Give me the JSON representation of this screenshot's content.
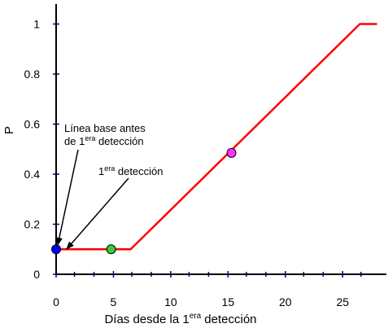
{
  "chart_data": {
    "type": "line",
    "xlabel": {
      "main": "Días desde la 1",
      "sup": "era",
      "tail": " detección"
    },
    "ylabel": "P",
    "xlim": [
      0,
      28
    ],
    "ylim": [
      0,
      1.05
    ],
    "x_ticks": [
      0,
      5,
      10,
      15,
      20,
      25
    ],
    "x_tick_labels": [
      "0",
      "5",
      "10",
      "15",
      "20",
      "25"
    ],
    "x_minor_ticks": [
      1.6,
      3.3,
      6.6,
      8.3,
      11.6,
      13.3,
      16.6,
      18.3,
      21.6,
      23.3,
      26.6
    ],
    "y_ticks": [
      0,
      0.2,
      0.4,
      0.6,
      0.8,
      1
    ],
    "y_tick_labels": [
      "0",
      "0.2",
      "0.4",
      "0.6",
      "0.8",
      "1"
    ],
    "grid": false,
    "series": [
      {
        "color": "#ff0000",
        "x": [
          0,
          6.5,
          26.5,
          28
        ],
        "y": [
          0.1,
          0.1,
          1.0,
          1.0
        ]
      }
    ],
    "markers": [
      {
        "x": 0,
        "y": 0.1,
        "color": "#0000ff"
      },
      {
        "x": 4.8,
        "y": 0.1,
        "color": "#33cc33"
      },
      {
        "x": 15.3,
        "y": 0.485,
        "color": "#ff33ff"
      }
    ],
    "annotations": [
      {
        "line1": "Línea base antes",
        "line2_main": "de 1",
        "line2_sup": "era",
        "line2_tail": " detección"
      },
      {
        "main": "1",
        "sup": "era",
        "tail": " detección"
      }
    ],
    "colors": {
      "line": "#ff0000",
      "axis": "#000000",
      "tick": "#000080"
    }
  }
}
